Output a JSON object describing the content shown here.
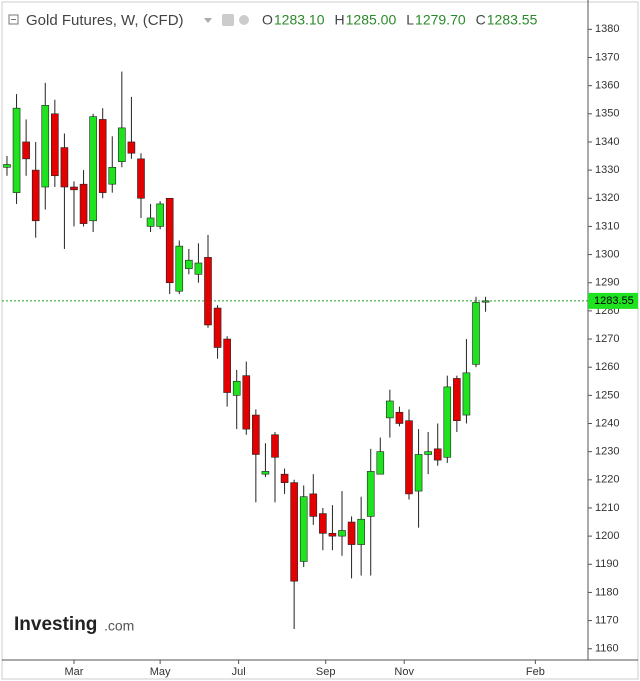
{
  "chart_data": {
    "type": "candlestick",
    "title": "Gold Futures, W, (CFD)",
    "legend": [
      {
        "key": "O",
        "text": "1283.10"
      },
      {
        "key": "H",
        "text": "1285.00"
      },
      {
        "key": "L",
        "text": "1279.70"
      },
      {
        "key": "C",
        "text": "1283.55"
      }
    ],
    "brand": "Investing",
    "brand_suffix": ".com",
    "up_color": "#1ee31e",
    "down_color": "#e30000",
    "open": [
      1331,
      1322,
      1340,
      1330,
      1324,
      1350,
      1338,
      1324,
      1325,
      1312,
      1348,
      1325,
      1333,
      1340,
      1334,
      1310,
      1310,
      1320,
      1287,
      1295,
      1293,
      1299,
      1281,
      1270,
      1250,
      1257,
      1243,
      1222,
      1236,
      1222,
      1219,
      1191,
      1215,
      1208,
      1201,
      1200,
      1205,
      1197,
      1207,
      1222,
      1242,
      1244,
      1241,
      1216,
      1229,
      1231,
      1228,
      1256,
      1243,
      1261,
      1283.1
    ],
    "high": [
      1335,
      1357,
      1348,
      1340,
      1361,
      1355,
      1343,
      1326,
      1330,
      1350,
      1352,
      1342,
      1365,
      1356,
      1336,
      1318,
      1319,
      1320,
      1305,
      1302,
      1304,
      1307,
      1282,
      1271,
      1259,
      1262,
      1245,
      1233,
      1237,
      1224,
      1220,
      1218,
      1222,
      1210,
      1211,
      1216,
      1207,
      1214,
      1231,
      1235,
      1252,
      1246,
      1245,
      1238,
      1237,
      1240,
      1257,
      1257,
      1270,
      1285,
      1285
    ],
    "low": [
      1328,
      1318,
      1328,
      1306,
      1316,
      1324,
      1302,
      1310,
      1310,
      1308,
      1320,
      1322,
      1331,
      1334,
      1313,
      1308,
      1309,
      1286,
      1286,
      1293,
      1290,
      1274,
      1263,
      1246,
      1238,
      1236,
      1212,
      1221,
      1212,
      1215,
      1167,
      1189,
      1204,
      1195,
      1195,
      1193,
      1185,
      1186,
      1186,
      1222,
      1235,
      1239,
      1213,
      1203,
      1222,
      1225,
      1226,
      1237,
      1240,
      1260,
      1279.7
    ],
    "close": [
      1332,
      1352,
      1334,
      1312,
      1353,
      1328,
      1324,
      1323,
      1311,
      1349,
      1322,
      1331,
      1345,
      1336,
      1320,
      1313,
      1318,
      1290,
      1303,
      1298,
      1297,
      1275,
      1267,
      1251,
      1255,
      1238,
      1229,
      1223,
      1228,
      1219,
      1184,
      1214,
      1207,
      1201,
      1200,
      1202,
      1197,
      1206,
      1223,
      1230,
      1248,
      1240,
      1215,
      1229,
      1230,
      1227,
      1253,
      1241,
      1258,
      1283,
      1283.55
    ],
    "last_price": {
      "value": 1283.55,
      "label": "1283.55"
    },
    "xlim": [
      -0.52,
      60.7
    ],
    "xticks": [
      {
        "value": 7,
        "label": "Mar"
      },
      {
        "value": 16,
        "label": "May"
      },
      {
        "value": 24.2,
        "label": "Jul"
      },
      {
        "value": 33.3,
        "label": "Sep"
      },
      {
        "value": 41.5,
        "label": "Nov"
      },
      {
        "value": 55.2,
        "label": "Feb"
      }
    ],
    "ylim": [
      1156,
      1389
    ],
    "yticks": [
      1160,
      1170,
      1180,
      1190,
      1200,
      1210,
      1220,
      1230,
      1240,
      1250,
      1260,
      1270,
      1280,
      1290,
      1300,
      1310,
      1320,
      1330,
      1340,
      1350,
      1360,
      1370,
      1380
    ]
  }
}
